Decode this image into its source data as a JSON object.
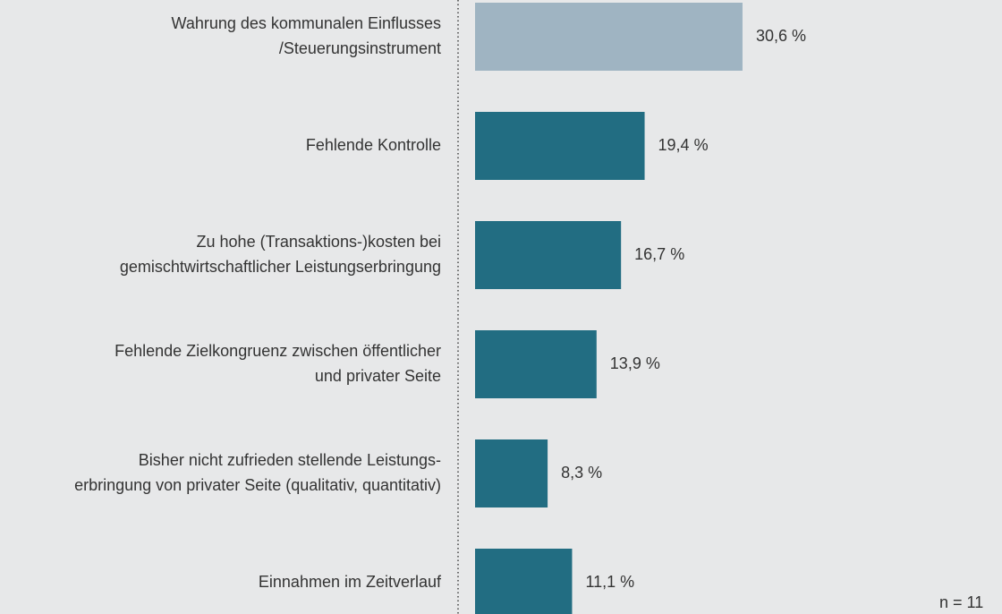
{
  "chart_data": {
    "type": "barh",
    "categories": [
      [
        "Wahrung des kommunalen Einflusses",
        "/Steuerungsinstrument"
      ],
      [
        "Fehlende Kontrolle"
      ],
      [
        "Zu hohe (Transaktions-)kosten bei",
        "gemischtwirtschaftlicher Leistungserbringung"
      ],
      [
        "Fehlende Zielkongruenz zwischen öffentlicher",
        "und privater Seite"
      ],
      [
        "Bisher nicht zufrieden stellende Leistungs-",
        "erbringung von privater Seite (qualitativ, quantitativ)"
      ],
      [
        "Einnahmen im Zeitverlauf"
      ]
    ],
    "values": [
      30.6,
      19.4,
      16.7,
      13.9,
      8.3,
      11.1
    ],
    "value_labels": [
      "30,6 %",
      "19,4 %",
      "16,7 %",
      "13,9 %",
      "8,3 %",
      "11,1 %"
    ],
    "colors": [
      "#9fb4c2",
      "#226d82",
      "#226d82",
      "#226d82",
      "#226d82",
      "#226d82"
    ],
    "annotation": "n = 11"
  }
}
